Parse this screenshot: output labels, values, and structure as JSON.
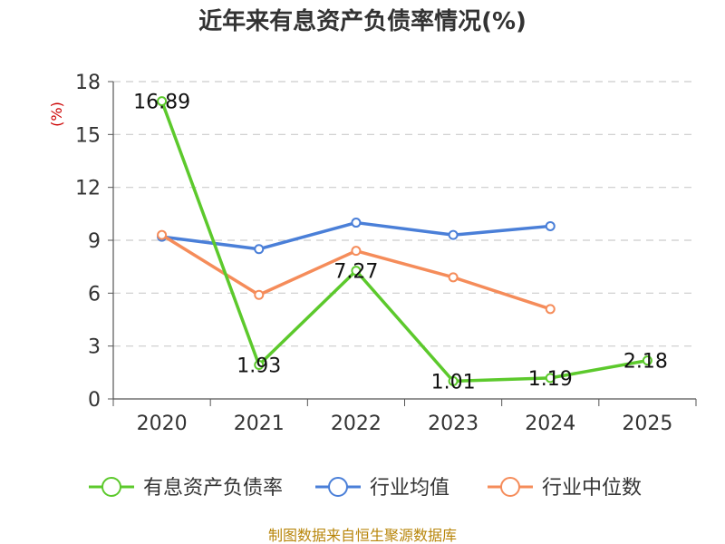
{
  "chart_data": {
    "type": "line",
    "title": "近年来有息资产负债率情况(%)",
    "ylabel": "(%)",
    "categories": [
      "2020",
      "2021",
      "2022",
      "2023",
      "2024",
      "2025"
    ],
    "ylim": [
      0,
      18
    ],
    "yticks": [
      "0",
      "3",
      "6",
      "9",
      "12",
      "15",
      "18"
    ],
    "grid": true,
    "legend_position": "bottom",
    "series": [
      {
        "name": "有息资产负债率",
        "color": "#5cc92c",
        "values": [
          16.89,
          1.93,
          7.27,
          1.01,
          1.19,
          2.18
        ],
        "labels": [
          "16.89",
          "1.93",
          "7.27",
          "1.01",
          "1.19",
          "2.18"
        ]
      },
      {
        "name": "行业均值",
        "color": "#4a7fd8",
        "values": [
          9.2,
          8.5,
          10.0,
          9.3,
          9.8,
          null
        ]
      },
      {
        "name": "行业中位数",
        "color": "#f58c5a",
        "values": [
          9.3,
          5.9,
          8.4,
          6.9,
          5.1,
          null
        ]
      }
    ]
  },
  "source": "制图数据来自恒生聚源数据库"
}
